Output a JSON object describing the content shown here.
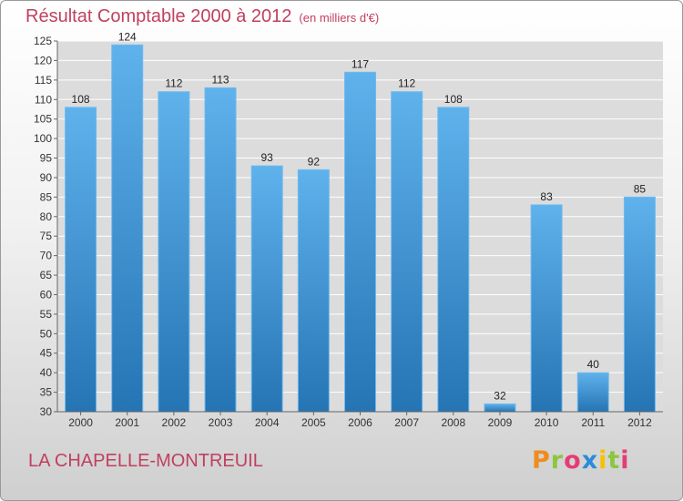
{
  "header": {
    "title": "Résultat Comptable 2000 à 2012",
    "unit": "(en milliers d'€)"
  },
  "footer": {
    "commune": "LA CHAPELLE-MONTREUIL",
    "logo": "Proxiti",
    "logo_colors": [
      "#f08c1e",
      "#8cc63f",
      "#e43d74",
      "#2b8cd8",
      "#f6c200",
      "#8cc63f",
      "#e43d74"
    ]
  },
  "colors": {
    "title": "#c04060",
    "bar_light": "#5fb2ec",
    "bar_dark": "#2574b4",
    "grid": "#ffffff"
  },
  "chart_data": {
    "type": "bar",
    "title": "Résultat Comptable 2000 à 2012",
    "subtitle": "(en milliers d'€)",
    "categories": [
      "2000",
      "2001",
      "2002",
      "2003",
      "2004",
      "2005",
      "2006",
      "2007",
      "2008",
      "2009",
      "2010",
      "2011",
      "2012"
    ],
    "values": [
      108,
      124,
      112,
      113,
      93,
      92,
      117,
      112,
      108,
      32,
      83,
      40,
      85
    ],
    "ylim": [
      30,
      125
    ],
    "yticks": [
      30,
      35,
      40,
      45,
      50,
      55,
      60,
      65,
      70,
      75,
      80,
      85,
      90,
      95,
      100,
      105,
      110,
      115,
      120,
      125
    ],
    "grid": true,
    "data_labels": true
  }
}
